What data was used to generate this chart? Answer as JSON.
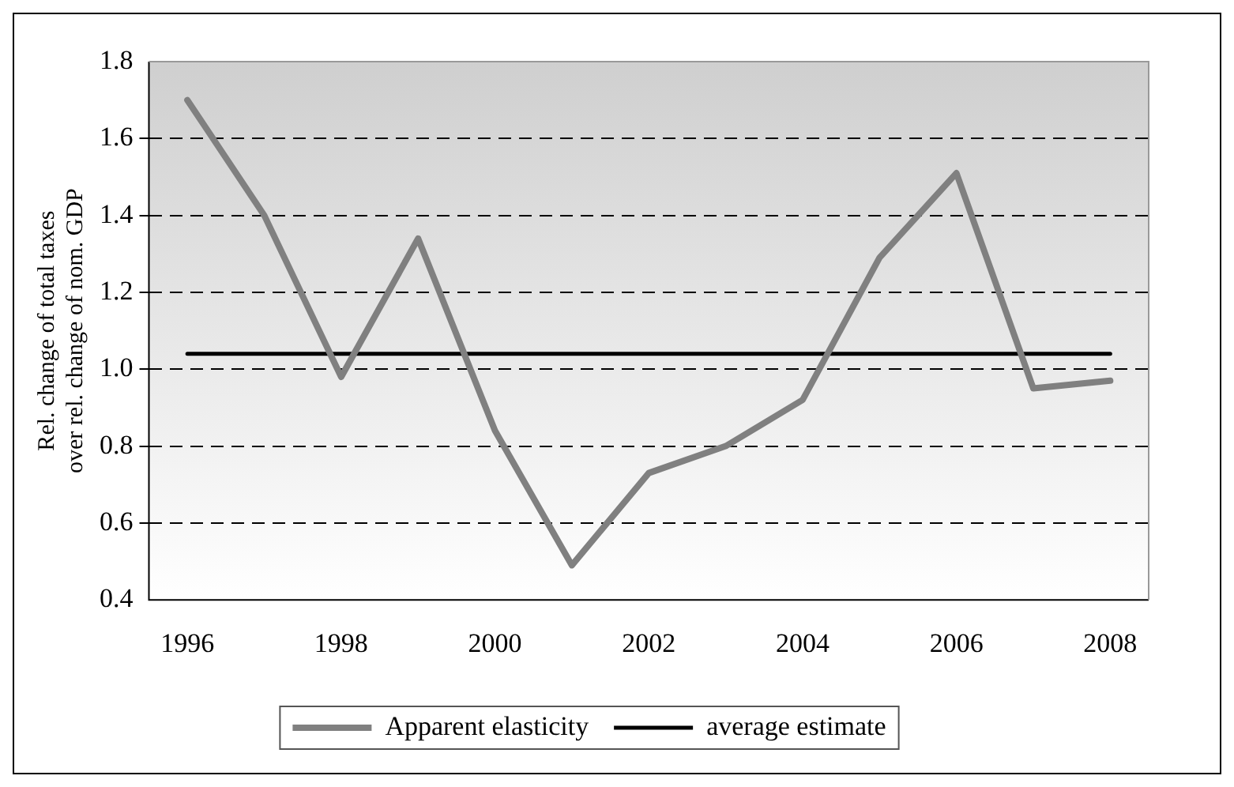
{
  "chart_data": {
    "type": "line",
    "ylabel": "Rel. change of total taxes over rel. change of nom. GDP",
    "categories": [
      "1996",
      null,
      "1998",
      null,
      "2000",
      null,
      "2002",
      null,
      "2004",
      null,
      "2006",
      null,
      "2008"
    ],
    "series": [
      {
        "name": "Apparent elasticity",
        "color": "#808080",
        "values": [
          1.7,
          1.4,
          0.98,
          1.34,
          0.84,
          0.49,
          0.73,
          0.8,
          0.92,
          1.29,
          1.51,
          0.95,
          0.97
        ]
      },
      {
        "name": "average estimate",
        "color": "#000000",
        "values": [
          1.04,
          1.04,
          1.04,
          1.04,
          1.04,
          1.04,
          1.04,
          1.04,
          1.04,
          1.04,
          1.04,
          1.04,
          1.04
        ]
      }
    ],
    "ylim": [
      0.4,
      1.8
    ],
    "yticks": [
      0.4,
      0.6,
      0.8,
      {
        "value": 1,
        "label": "1.0"
      },
      1.2,
      1.4,
      1.6,
      1.8
    ],
    "grid": "y",
    "legend": "bottom",
    "marker": "none",
    "line_style": "solid"
  }
}
